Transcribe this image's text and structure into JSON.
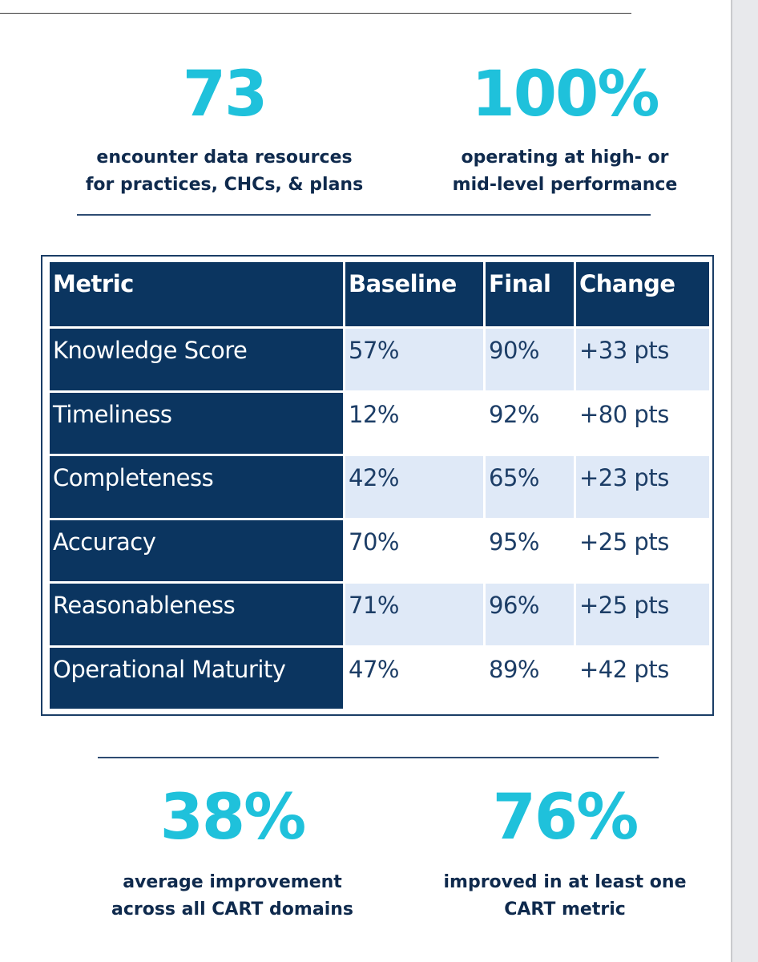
{
  "colors": {
    "accent": "#1fc1db",
    "navy": "#0b3560",
    "caption_text": "#0f2a4d",
    "row_shade": "#dfe9f7"
  },
  "stats_top": [
    {
      "number": "73",
      "caption_line1": "encounter data resources",
      "caption_line2": "for practices, CHCs, & plans"
    },
    {
      "number": "100%",
      "caption_line1": "operating at high- or",
      "caption_line2": "mid-level performance"
    }
  ],
  "table": {
    "headers": [
      "Metric",
      "Baseline",
      "Final",
      "Change"
    ],
    "rows": [
      {
        "metric": "Knowledge Score",
        "baseline": "57%",
        "final": "90%",
        "change": "+33 pts"
      },
      {
        "metric": "Timeliness",
        "baseline": "12%",
        "final": "92%",
        "change": "+80 pts"
      },
      {
        "metric": "Completeness",
        "baseline": "42%",
        "final": "65%",
        "change": "+23 pts"
      },
      {
        "metric": "Accuracy",
        "baseline": "70%",
        "final": "95%",
        "change": "+25 pts"
      },
      {
        "metric": "Reasonableness",
        "baseline": "71%",
        "final": "96%",
        "change": "+25 pts"
      },
      {
        "metric": "Operational Maturity",
        "baseline": "47%",
        "final": "89%",
        "change": "+42 pts"
      }
    ]
  },
  "stats_bottom": [
    {
      "number": "38%",
      "caption_line1": "average improvement",
      "caption_line2": "across all CART domains"
    },
    {
      "number": "76%",
      "caption_line1": "improved in at least one",
      "caption_line2": "CART metric"
    }
  ]
}
